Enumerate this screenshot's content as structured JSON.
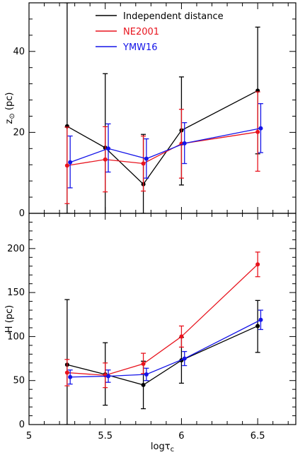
{
  "chart_data": [
    {
      "type": "line",
      "panel": "top",
      "ylabel": "z",
      "ylabel_sub": "⊙",
      "ylabel_unit": " (pc)",
      "xlim": [
        5,
        6.75
      ],
      "ylim": [
        0,
        52
      ],
      "yticks": [
        0,
        20,
        40
      ],
      "ytick_labels": [
        "0",
        "20",
        "40"
      ],
      "legend": {
        "placement": "top-center",
        "entries": [
          {
            "label": "Independent distance",
            "color": "#000000"
          },
          {
            "label": "NE2001",
            "color": "#e8141e"
          },
          {
            "label": "YMW16",
            "color": "#1414e8"
          }
        ]
      },
      "series": [
        {
          "name": "Independent distance",
          "color": "#000000",
          "x": [
            5.25,
            5.5,
            5.75,
            6.0,
            6.5
          ],
          "values": [
            21.5,
            16.2,
            7.2,
            20.5,
            30.3
          ],
          "err_low": [
            0,
            0,
            0,
            7.0,
            14.7
          ],
          "err_high": [
            52,
            34.5,
            19.5,
            33.7,
            46.0
          ]
        },
        {
          "name": "NE2001",
          "color": "#e8141e",
          "x": [
            5.25,
            5.5,
            5.75,
            6.0,
            6.5
          ],
          "values": [
            11.8,
            13.3,
            12.3,
            17.2,
            20.1
          ],
          "err_low": [
            2.4,
            5.3,
            5.5,
            8.7,
            10.4
          ],
          "err_high": [
            21.3,
            21.4,
            19.1,
            25.7,
            30.0
          ]
        },
        {
          "name": "YMW16",
          "color": "#1414e8",
          "x": [
            5.27,
            5.52,
            5.77,
            6.02,
            6.52
          ],
          "values": [
            12.6,
            16.0,
            13.5,
            17.3,
            21.0
          ],
          "err_low": [
            6.3,
            10.2,
            8.7,
            12.3,
            15.0
          ],
          "err_high": [
            19.1,
            22.1,
            18.4,
            22.4,
            27.1
          ]
        }
      ]
    },
    {
      "type": "line",
      "panel": "bottom",
      "xlabel": "logτ",
      "xlabel_sub": "c",
      "ylabel": "H (pc)",
      "xlim": [
        5,
        6.75
      ],
      "ylim": [
        0,
        240
      ],
      "xticks": [
        5,
        5.5,
        6,
        6.5
      ],
      "xtick_labels": [
        "5",
        "5.5",
        "6",
        "6.5"
      ],
      "yticks": [
        0,
        50,
        100,
        150,
        200
      ],
      "ytick_labels": [
        "0",
        "50",
        "100",
        "150",
        "200"
      ],
      "series": [
        {
          "name": "Independent distance",
          "color": "#000000",
          "x": [
            5.25,
            5.5,
            5.75,
            6.0,
            6.5
          ],
          "values": [
            68,
            57,
            45,
            73,
            112
          ],
          "err_low": [
            0,
            22,
            18,
            47,
            82
          ],
          "err_high": [
            142,
            93,
            72,
            99,
            141
          ]
        },
        {
          "name": "NE2001",
          "color": "#e8141e",
          "x": [
            5.25,
            5.5,
            5.75,
            6.0,
            6.5
          ],
          "values": [
            59,
            56,
            69,
            100,
            182
          ],
          "err_low": [
            44,
            42,
            58,
            88,
            168
          ],
          "err_high": [
            74,
            70,
            81,
            112,
            196
          ]
        },
        {
          "name": "YMW16",
          "color": "#1414e8",
          "x": [
            5.27,
            5.52,
            5.77,
            6.02,
            6.52
          ],
          "values": [
            54,
            55,
            57,
            75,
            119
          ],
          "err_low": [
            46,
            48,
            50,
            67,
            108
          ],
          "err_high": [
            62,
            62,
            64,
            83,
            130
          ]
        }
      ]
    }
  ]
}
